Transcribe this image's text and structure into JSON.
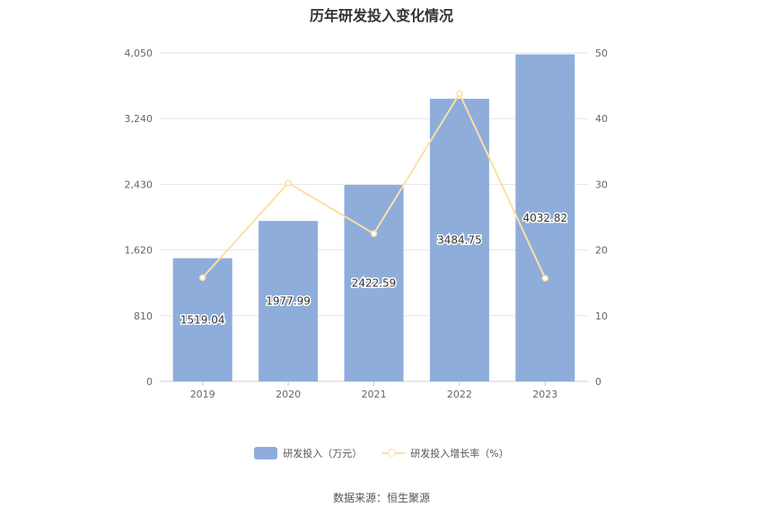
{
  "chart_data": {
    "type": "bar",
    "title": "历年研发投入变化情况",
    "categories": [
      "2019",
      "2020",
      "2021",
      "2022",
      "2023"
    ],
    "series": [
      {
        "name": "研发投入（万元）",
        "type": "bar",
        "axis": "left",
        "values": [
          1519.04,
          1977.99,
          2422.59,
          3484.75,
          4032.82
        ],
        "color": "#8eaddb"
      },
      {
        "name": "研发投入增长率（%）",
        "type": "line",
        "axis": "right",
        "values": [
          15.8,
          30.2,
          22.5,
          43.8,
          15.7
        ],
        "color": "#fcdfa4"
      }
    ],
    "y_left": {
      "ticks": [
        "0",
        "810",
        "1,620",
        "2,430",
        "3,240",
        "4,050"
      ],
      "range": [
        0,
        4050
      ]
    },
    "y_right": {
      "ticks": [
        "0",
        "10",
        "20",
        "30",
        "40",
        "50"
      ],
      "range": [
        0,
        50
      ]
    },
    "data_labels": [
      "1519.04",
      "1977.99",
      "2422.59",
      "3484.75",
      "4032.82"
    ],
    "grid": true,
    "legend_position": "bottom"
  },
  "source_text": "数据来源：恒生聚源"
}
